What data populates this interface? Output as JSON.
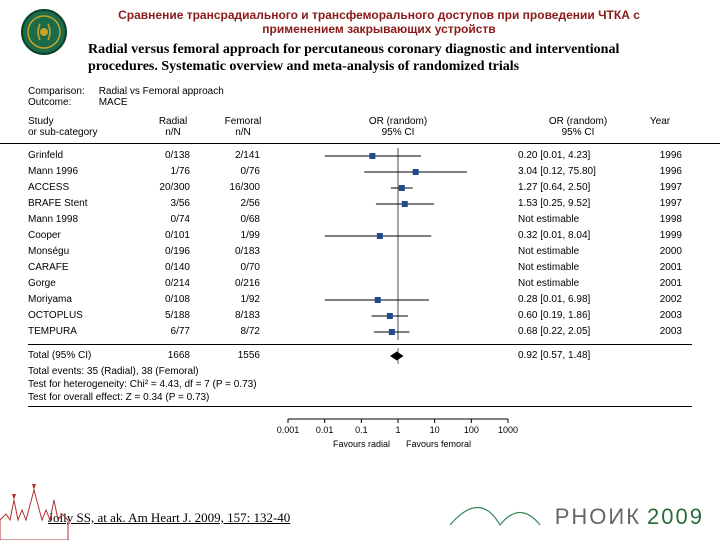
{
  "header": {
    "title_ru": "Сравнение трансрадиального и трансфеморального доступов при проведении ЧТКА с применением закрывающих устройств",
    "title_en": "Radial versus femoral approach for percutaneous coronary diagnostic and interventional procedures. Systematic overview and meta-analysis of randomized trials"
  },
  "meta": {
    "comparison_label": "Comparison:",
    "comparison_value": "Radial vs Femoral approach",
    "outcome_label": "Outcome:",
    "outcome_value": "MACE"
  },
  "columns": {
    "study": "Study\nor sub-category",
    "radial": "Radial\nn/N",
    "femoral": "Femoral\nn/N",
    "or_plot": "OR (random)\n95% CI",
    "or_text": "OR (random)\n95% CI",
    "year": "Year"
  },
  "forest": {
    "log_min": -3,
    "log_max": 3,
    "ref_value": 1,
    "marker_color": "#1e4a8c",
    "line_color": "#000000",
    "diamond_color": "#000000",
    "ticks": [
      0.001,
      0.01,
      0.1,
      1,
      10,
      100,
      1000
    ],
    "favours_left": "Favours radial",
    "favours_right": "Favours femoral"
  },
  "studies": [
    {
      "name": "Grinfeld",
      "radial": "0/138",
      "femoral": "2/141",
      "or": 0.2,
      "lo": 0.01,
      "hi": 4.23,
      "year": 1996,
      "text": "0.20 [0.01, 4.23]",
      "estimable": true
    },
    {
      "name": "Mann 1996",
      "radial": "1/76",
      "femoral": "0/76",
      "or": 3.04,
      "lo": 0.12,
      "hi": 75.8,
      "year": 1996,
      "text": "3.04 [0.12, 75.80]",
      "estimable": true
    },
    {
      "name": "ACCESS",
      "radial": "20/300",
      "femoral": "16/300",
      "or": 1.27,
      "lo": 0.64,
      "hi": 2.5,
      "year": 1997,
      "text": "1.27 [0.64, 2.50]",
      "estimable": true
    },
    {
      "name": "BRAFE Stent",
      "radial": "3/56",
      "femoral": "2/56",
      "or": 1.53,
      "lo": 0.25,
      "hi": 9.52,
      "year": 1997,
      "text": "1.53 [0.25, 9.52]",
      "estimable": true
    },
    {
      "name": "Mann 1998",
      "radial": "0/74",
      "femoral": "0/68",
      "year": 1998,
      "text": "Not estimable",
      "estimable": false
    },
    {
      "name": "Cooper",
      "radial": "0/101",
      "femoral": "1/99",
      "or": 0.32,
      "lo": 0.01,
      "hi": 8.04,
      "year": 1999,
      "text": "0.32 [0.01, 8.04]",
      "estimable": true
    },
    {
      "name": "Monségu",
      "radial": "0/196",
      "femoral": "0/183",
      "year": 2000,
      "text": "Not estimable",
      "estimable": false
    },
    {
      "name": "CARAFE",
      "radial": "0/140",
      "femoral": "0/70",
      "year": 2001,
      "text": "Not estimable",
      "estimable": false
    },
    {
      "name": "Gorge",
      "radial": "0/214",
      "femoral": "0/216",
      "year": 2001,
      "text": "Not estimable",
      "estimable": false
    },
    {
      "name": "Moriyama",
      "radial": "0/108",
      "femoral": "1/92",
      "or": 0.28,
      "lo": 0.01,
      "hi": 6.98,
      "year": 2002,
      "text": "0.28 [0.01, 6.98]",
      "estimable": true
    },
    {
      "name": "OCTOPLUS",
      "radial": "5/188",
      "femoral": "8/183",
      "or": 0.6,
      "lo": 0.19,
      "hi": 1.86,
      "year": 2003,
      "text": "0.60 [0.19, 1.86]",
      "estimable": true
    },
    {
      "name": "TEMPURA",
      "radial": "6/77",
      "femoral": "8/72",
      "or": 0.68,
      "lo": 0.22,
      "hi": 2.05,
      "year": 2003,
      "text": "0.68 [0.22, 2.05]",
      "estimable": true
    }
  ],
  "total": {
    "label": "Total (95% CI)",
    "radial_n": "1668",
    "femoral_n": "1556",
    "or": 0.92,
    "lo": 0.57,
    "hi": 1.48,
    "text": "0.92 [0.57, 1.48]",
    "events": "Total events: 35 (Radial), 38 (Femoral)",
    "heterogeneity": "Test for heterogeneity: Chi² = 4.43, df = 7 (P = 0.73)",
    "overall": "Test for overall effect: Z = 0.34 (P = 0.73)"
  },
  "citation": "Jolly SS, at ak. Am Heart J. 2009, 157: 132-40",
  "footer": {
    "org": "РНОИК",
    "year": "2009"
  }
}
